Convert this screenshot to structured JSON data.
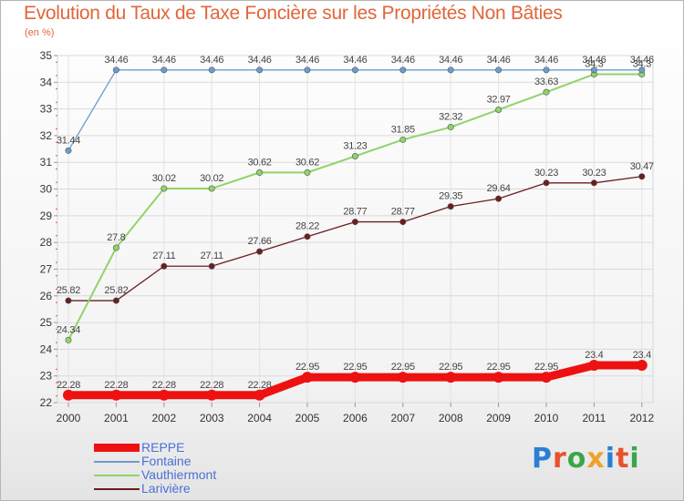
{
  "header": {
    "title": "Evolution du Taux de Taxe Foncière sur les Propriétés Non Bâties",
    "unit": "(en %)"
  },
  "logo": {
    "text": "Proxiti",
    "colors": [
      "#2a7fd4",
      "#e8512b",
      "#3aa64b",
      "#f0a12b",
      "#2a7fd4",
      "#e8512b",
      "#3aa64b"
    ]
  },
  "chart_data": {
    "type": "line",
    "title": "Evolution du Taux de Taxe Foncière sur les Propriétés Non Bâties",
    "ylabel": "(en %)",
    "xlabel": "",
    "x": [
      "2000",
      "2001",
      "2002",
      "2003",
      "2004",
      "2005",
      "2006",
      "2007",
      "2008",
      "2009",
      "2010",
      "2011",
      "2012"
    ],
    "ylim": [
      22,
      35
    ],
    "yticks": [
      "22",
      "23",
      "24",
      "25",
      "26",
      "27",
      "28",
      "29",
      "30",
      "31",
      "32",
      "33",
      "34",
      "35"
    ],
    "grid": true,
    "legend": "bottom-left",
    "series": [
      {
        "name": "REPPE",
        "color": "#ee1111",
        "width": 9,
        "values": [
          22.28,
          22.28,
          22.28,
          22.28,
          22.28,
          22.95,
          22.95,
          22.95,
          22.95,
          22.95,
          22.95,
          23.4,
          23.4
        ],
        "labels": [
          "22.28",
          "22.28",
          "22.28",
          "22.28",
          "22.28",
          "22.95",
          "22.95",
          "22.95",
          "22.95",
          "22.95",
          "22.95",
          "23.4",
          "23.4"
        ]
      },
      {
        "name": "Fontaine",
        "color": "#6b9ccc",
        "width": 1.3,
        "values": [
          31.44,
          34.46,
          34.46,
          34.46,
          34.46,
          34.46,
          34.46,
          34.46,
          34.46,
          34.46,
          34.46,
          34.46,
          34.46
        ],
        "labels": [
          "31.44",
          "34.46",
          "34.46",
          "34.46",
          "34.46",
          "34.46",
          "34.46",
          "34.46",
          "34.46",
          "34.46",
          "34.46",
          "34.46",
          "34.46"
        ]
      },
      {
        "name": "Vauthiermont",
        "color": "#8fd46a",
        "width": 2,
        "values": [
          24.34,
          27.8,
          30.02,
          30.02,
          30.62,
          30.62,
          31.23,
          31.85,
          32.32,
          32.97,
          33.63,
          34.3,
          34.3
        ],
        "labels": [
          "24.34",
          "27.8",
          "30.02",
          "30.02",
          "30.62",
          "30.62",
          "31.23",
          "31.85",
          "32.32",
          "32.97",
          "33.63",
          "34.3",
          "34.3"
        ]
      },
      {
        "name": "Larivière",
        "color": "#6b1e1e",
        "width": 1.3,
        "values": [
          25.82,
          25.82,
          27.11,
          27.11,
          27.66,
          28.22,
          28.77,
          28.77,
          29.35,
          29.64,
          30.23,
          30.23,
          30.47
        ],
        "labels": [
          "25.82",
          "25.82",
          "27.11",
          "27.11",
          "27.66",
          "28.22",
          "28.77",
          "28.77",
          "29.35",
          "29.64",
          "30.23",
          "30.23",
          "30.47"
        ]
      }
    ]
  }
}
